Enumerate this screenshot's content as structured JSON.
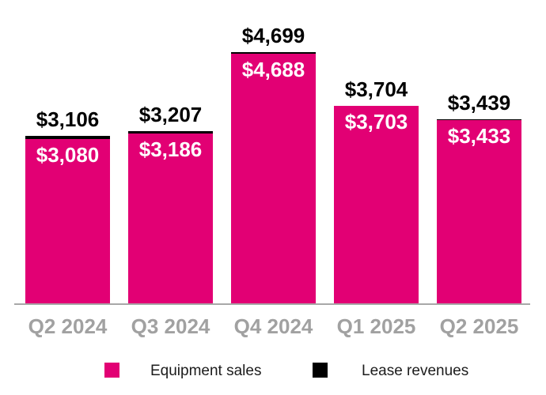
{
  "chart_data": {
    "type": "bar",
    "stacked": true,
    "title": "",
    "xlabel": "",
    "ylabel": "",
    "categories": [
      "Q2 2024",
      "Q3 2024",
      "Q4 2024",
      "Q1 2025",
      "Q2 2025"
    ],
    "series": [
      {
        "name": "Equipment sales",
        "color": "#e20074",
        "values": [
          3080,
          3186,
          4688,
          3703,
          3433
        ],
        "labels": [
          "$3,080",
          "$3,186",
          "$4,688",
          "$3,703",
          "$3,433"
        ]
      },
      {
        "name": "Lease revenues",
        "color": "#000000",
        "values": [
          26,
          21,
          11,
          1,
          6
        ]
      }
    ],
    "totals": {
      "values": [
        3106,
        3207,
        4699,
        3704,
        3439
      ],
      "labels": [
        "$3,106",
        "$3,207",
        "$4,699",
        "$3,704",
        "$3,439"
      ]
    },
    "ylim": [
      0,
      4699
    ],
    "grid": false,
    "legend_position": "bottom"
  },
  "legend": {
    "items": [
      {
        "label": "Equipment sales",
        "color": "#e20074"
      },
      {
        "label": "Lease revenues",
        "color": "#000000"
      }
    ]
  },
  "axis": {
    "line_color": "#a8a8a8",
    "tick_label_color": "#a1a1a1"
  }
}
